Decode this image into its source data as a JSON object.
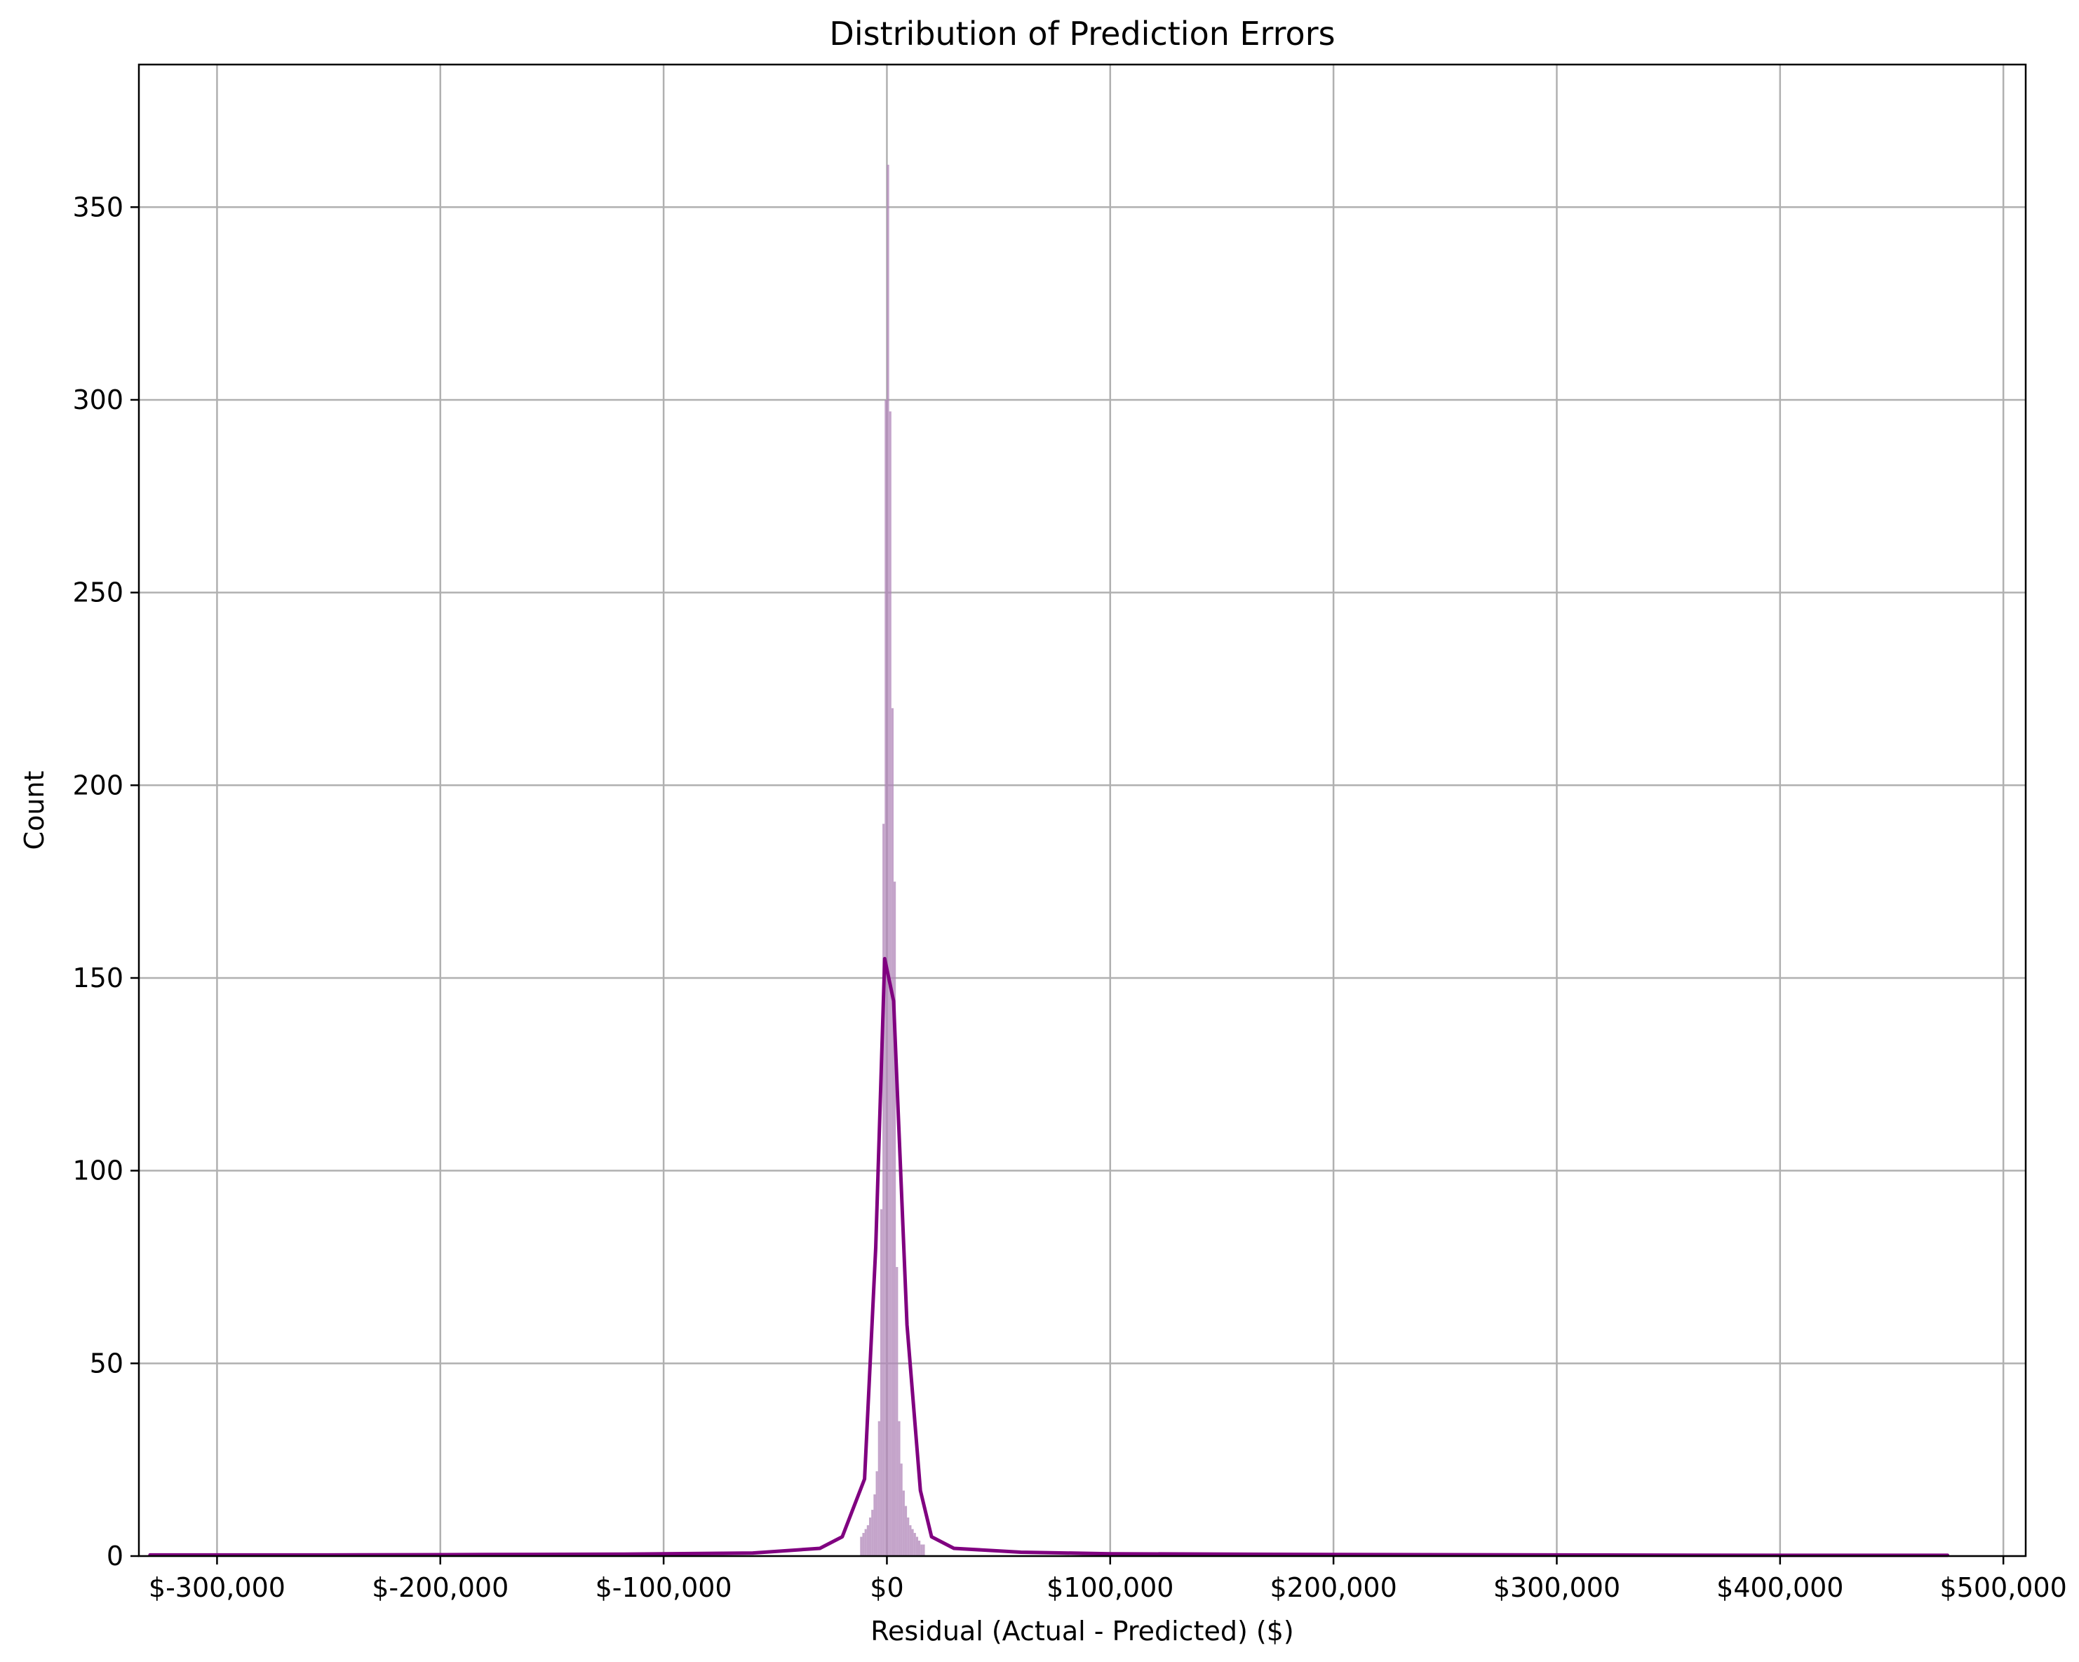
{
  "chart_data": {
    "type": "bar",
    "title": "Distribution of Prediction Errors",
    "xlabel": "Residual (Actual - Predicted) ($)",
    "ylabel": "Count",
    "xlim": [
      -335000,
      510000
    ],
    "ylim": [
      0,
      387
    ],
    "grid": true,
    "x_ticks": [
      -300000,
      -200000,
      -100000,
      0,
      100000,
      200000,
      300000,
      400000,
      500000
    ],
    "x_tick_labels": [
      "$-300,000",
      "$-200,000",
      "$-100,000",
      "$0",
      "$100,000",
      "$200,000",
      "$300,000",
      "$400,000",
      "$500,000"
    ],
    "y_ticks": [
      0,
      50,
      100,
      150,
      200,
      250,
      300,
      350
    ],
    "y_tick_labels": [
      "0",
      "50",
      "100",
      "150",
      "200",
      "250",
      "300",
      "350"
    ],
    "colors": {
      "bars": "#b085b8",
      "kde": "#800080",
      "grid": "#b0b0b0"
    },
    "histogram": {
      "bin_width": 1000,
      "bins": [
        [
          -12000,
          5
        ],
        [
          -11000,
          6
        ],
        [
          -10000,
          7
        ],
        [
          -9000,
          8
        ],
        [
          -8000,
          10
        ],
        [
          -7000,
          12
        ],
        [
          -6000,
          16
        ],
        [
          -5000,
          22
        ],
        [
          -4000,
          35
        ],
        [
          -3000,
          90
        ],
        [
          -2000,
          190
        ],
        [
          -1000,
          300
        ],
        [
          0,
          361
        ],
        [
          1000,
          297
        ],
        [
          2000,
          220
        ],
        [
          3000,
          175
        ],
        [
          4000,
          75
        ],
        [
          5000,
          35
        ],
        [
          6000,
          24
        ],
        [
          7000,
          17
        ],
        [
          8000,
          13
        ],
        [
          9000,
          10
        ],
        [
          10000,
          8
        ],
        [
          11000,
          7
        ],
        [
          12000,
          6
        ],
        [
          13000,
          5
        ],
        [
          14000,
          4
        ],
        [
          15000,
          3
        ],
        [
          16000,
          3
        ]
      ]
    },
    "kde": {
      "x": [
        -330000,
        -250000,
        -180000,
        -120000,
        -60000,
        -30000,
        -20000,
        -10000,
        -5000,
        -1000,
        3000,
        9000,
        15000,
        20000,
        30000,
        60000,
        100000,
        200000,
        300000,
        400000,
        475000
      ],
      "y": [
        0.3,
        0.3,
        0.4,
        0.5,
        0.8,
        2,
        5,
        20,
        80,
        155,
        144,
        60,
        17,
        5,
        2,
        1,
        0.6,
        0.4,
        0.3,
        0.2,
        0.2
      ]
    }
  }
}
